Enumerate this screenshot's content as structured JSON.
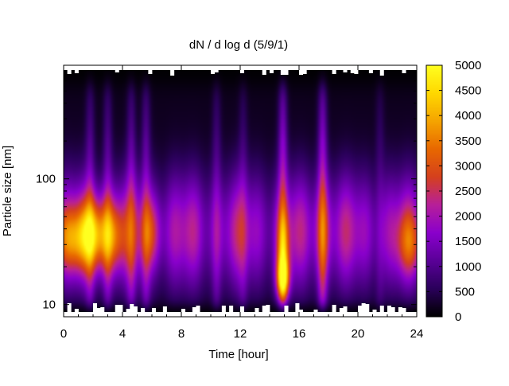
{
  "chart_data": {
    "type": "heatmap",
    "title": "dN / d log d (5/9/1)",
    "xlabel": "Time [hour]",
    "ylabel": "Particle size [nm]",
    "xlim": [
      0,
      24
    ],
    "ylim": [
      8,
      800
    ],
    "y_scale": "log",
    "x_ticks": [
      "0",
      "4",
      "8",
      "12",
      "16",
      "20",
      "24"
    ],
    "x_tick_values": [
      0,
      4,
      8,
      12,
      16,
      20,
      24
    ],
    "y_ticks": [
      "10",
      "100"
    ],
    "y_tick_values": [
      10,
      100
    ],
    "colorbar": {
      "range": [
        0,
        5000
      ],
      "ticks": [
        "0",
        "500",
        "1000",
        "1500",
        "2000",
        "2500",
        "3000",
        "3500",
        "4000",
        "4500",
        "5000"
      ],
      "tick_values": [
        0,
        500,
        1000,
        1500,
        2000,
        2500,
        3000,
        3500,
        4000,
        4500,
        5000
      ],
      "palette": [
        "#000000",
        "#2a005a",
        "#5a0098",
        "#8a00cc",
        "#b71f9a",
        "#d5401e",
        "#e86800",
        "#f5a400",
        "#ffd800",
        "#ffff20"
      ]
    },
    "background_mode": {
      "center_nm": 38,
      "width_decades": 0.33,
      "value": 1800
    },
    "features": [
      {
        "time_h": 0.6,
        "center_nm": 33,
        "value": 2850,
        "time_width_h": 0.9,
        "size_width_decades": 0.18
      },
      {
        "time_h": 2.0,
        "center_nm": 36,
        "value": 3350,
        "time_width_h": 0.65,
        "size_width_decades": 0.2
      },
      {
        "time_h": 3.3,
        "center_nm": 35,
        "value": 3000,
        "time_width_h": 0.65,
        "size_width_decades": 0.2
      },
      {
        "time_h": 5.9,
        "center_nm": 37,
        "value": 2300,
        "time_width_h": 0.5,
        "size_width_decades": 0.2
      },
      {
        "time_h": 14.9,
        "center_nm": 16,
        "value": 4100,
        "time_width_h": 0.32,
        "size_width_decades": 0.12
      },
      {
        "time_h": 14.9,
        "center_nm": 28,
        "value": 2400,
        "time_width_h": 0.3,
        "size_width_decades": 0.2
      },
      {
        "time_h": 17.6,
        "center_nm": 38,
        "value": 2000,
        "time_width_h": 0.4,
        "size_width_decades": 0.3
      },
      {
        "time_h": 23.5,
        "center_nm": 30,
        "value": 2400,
        "time_width_h": 0.6,
        "size_width_decades": 0.18
      }
    ],
    "streaks": [
      {
        "time_h": 1.8,
        "value": 700
      },
      {
        "time_h": 3.0,
        "value": 700
      },
      {
        "time_h": 4.6,
        "value": 750
      },
      {
        "time_h": 5.6,
        "value": 800
      },
      {
        "time_h": 10.4,
        "value": 550
      },
      {
        "time_h": 12.2,
        "value": 450
      },
      {
        "time_h": 14.9,
        "value": 1300
      },
      {
        "time_h": 17.6,
        "value": 1300
      },
      {
        "time_h": 21.5,
        "value": 400
      }
    ],
    "grid": false,
    "legend": "none"
  }
}
